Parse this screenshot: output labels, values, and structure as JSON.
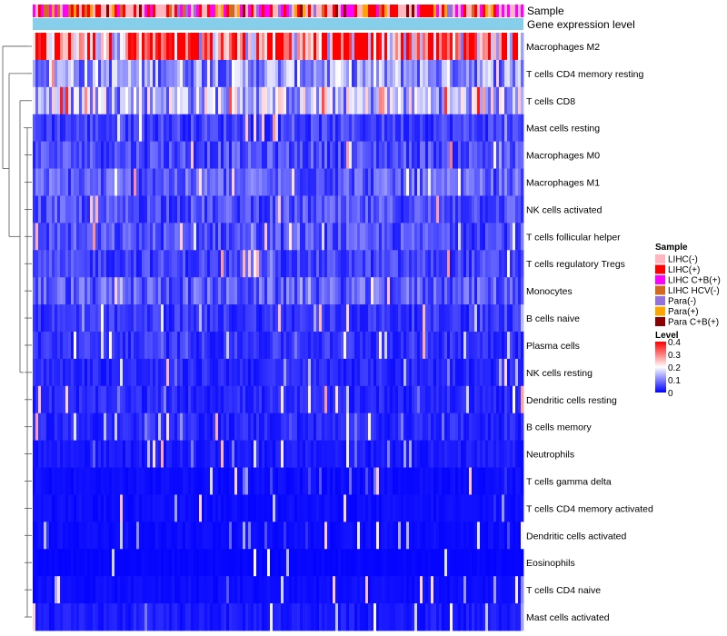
{
  "chart_data": {
    "type": "heatmap",
    "title": "",
    "annotations": {
      "sample_label": "Sample",
      "expression_label": "Gene expression level"
    },
    "rows": [
      {
        "name": "Macrophages M2",
        "level": 0.3
      },
      {
        "name": "T cells CD4 memory resting",
        "level": 0.12
      },
      {
        "name": "T cells CD8",
        "level": 0.15
      },
      {
        "name": "Mast cells resting",
        "level": 0.05
      },
      {
        "name": "Macrophages M0",
        "level": 0.06
      },
      {
        "name": "Macrophages M1",
        "level": 0.07
      },
      {
        "name": "NK cells activated",
        "level": 0.06
      },
      {
        "name": "T cells follicular helper",
        "level": 0.06
      },
      {
        "name": "T cells regulatory  Tregs",
        "level": 0.05
      },
      {
        "name": "Monocytes",
        "level": 0.07
      },
      {
        "name": "B cells naive",
        "level": 0.04
      },
      {
        "name": "Plasma cells",
        "level": 0.04
      },
      {
        "name": "NK cells resting",
        "level": 0.03
      },
      {
        "name": "Dendritic cells resting",
        "level": 0.03
      },
      {
        "name": "B cells memory",
        "level": 0.03
      },
      {
        "name": "Neutrophils",
        "level": 0.02
      },
      {
        "name": "T cells gamma delta",
        "level": 0.01
      },
      {
        "name": "T cells CD4 memory activated",
        "level": 0.01
      },
      {
        "name": "Dendritic cells activated",
        "level": 0.01
      },
      {
        "name": "Eosinophils",
        "level": 0.005
      },
      {
        "name": "T cells CD4 naive",
        "level": 0.01
      },
      {
        "name": "Mast cells activated",
        "level": 0.02
      }
    ],
    "n_columns": 180,
    "sample_legend": {
      "title": "Sample",
      "entries": [
        {
          "label": "LIHC(-)",
          "color": "#FFB6C1"
        },
        {
          "label": "LIHC(+)",
          "color": "#FF0000"
        },
        {
          "label": "LIHC C+B(+)",
          "color": "#FF00FF"
        },
        {
          "label": "LIHC HCV(-)",
          "color": "#D2691E"
        },
        {
          "label": "Para(-)",
          "color": "#9370DB"
        },
        {
          "label": "Para(+)",
          "color": "#FFA500"
        },
        {
          "label": "Para C+B(+)",
          "color": "#8B0000"
        }
      ]
    },
    "level_legend": {
      "title": "Level",
      "ticks": [
        "0.4",
        "0.3",
        "0.2",
        "0.1",
        "0"
      ],
      "tick_values": [
        0.4,
        0.3,
        0.2,
        0.1,
        0
      ],
      "range": [
        0,
        0.4
      ],
      "color_low": "#0000FF",
      "color_mid": "#FFFFFF",
      "color_high": "#FF0000"
    },
    "expression_bar_color": "#87CEEB"
  }
}
